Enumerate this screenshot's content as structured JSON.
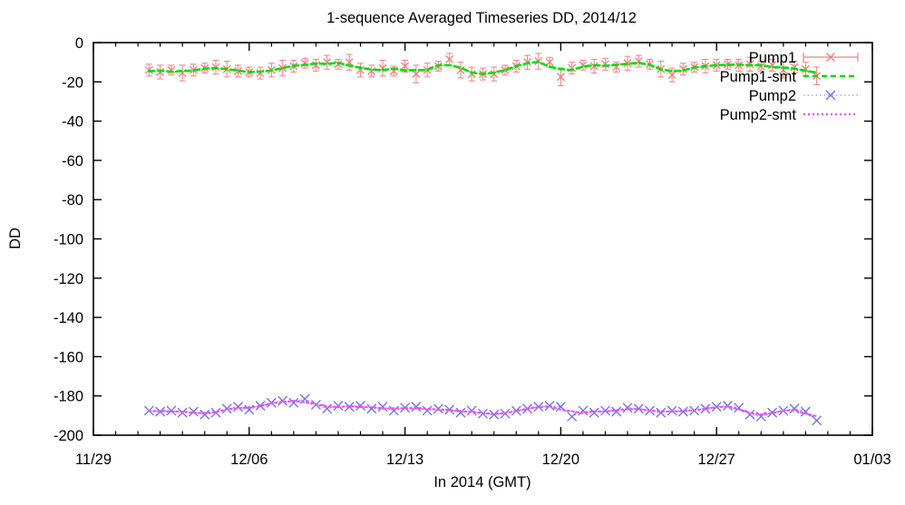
{
  "chart_data": {
    "type": "line",
    "title": "1-sequence Averaged Timeseries DD, 2014/12",
    "xlabel": "In 2014 (GMT)",
    "ylabel": "DD",
    "x_unit": "days since 11/29 2014 00:00 GMT",
    "xlim": [
      0,
      35
    ],
    "ylim": [
      -200,
      0
    ],
    "grid": false,
    "legend_position": "top-right",
    "xticks": [
      {
        "day": 0,
        "label": "11/29"
      },
      {
        "day": 7,
        "label": "12/06"
      },
      {
        "day": 14,
        "label": "12/13"
      },
      {
        "day": 21,
        "label": "12/20"
      },
      {
        "day": 28,
        "label": "12/27"
      },
      {
        "day": 35,
        "label": "01/03"
      }
    ],
    "x_minor_step_days": 1,
    "yticks": [
      0,
      -20,
      -40,
      -60,
      -80,
      -100,
      -120,
      -140,
      -160,
      -180,
      -200
    ],
    "x_days": [
      2.5,
      3,
      3.5,
      4,
      4.5,
      5,
      5.5,
      6,
      6.5,
      7,
      7.5,
      8,
      8.5,
      9,
      9.5,
      10,
      10.5,
      11,
      11.5,
      12,
      12.5,
      13,
      13.5,
      14,
      14.5,
      15,
      15.5,
      16,
      16.5,
      17,
      17.5,
      18,
      18.5,
      19,
      19.5,
      20,
      20.5,
      21,
      21.5,
      22,
      22.5,
      23,
      23.5,
      24,
      24.5,
      25,
      25.5,
      26,
      26.5,
      27,
      27.5,
      28,
      28.5,
      29,
      29.5,
      30,
      30.5,
      31,
      31.5,
      32,
      32.5
    ],
    "series": [
      {
        "name": "Pump1",
        "style": "errorbars",
        "marker": "x",
        "color": "#f08080",
        "values": [
          -14,
          -15,
          -14,
          -15.5,
          -14,
          -13,
          -12.5,
          -13.5,
          -14.5,
          -15,
          -15.5,
          -14,
          -13,
          -12,
          -10.5,
          -11.5,
          -10,
          -11,
          -10,
          -14,
          -14.5,
          -13,
          -14.5,
          -12,
          -16,
          -14,
          -12,
          -8.5,
          -14,
          -16,
          -16,
          -16,
          -14,
          -12,
          -10,
          -9.5,
          -10,
          -17.5,
          -13,
          -11.5,
          -12,
          -11,
          -12.5,
          -10.5,
          -9.5,
          -11,
          -13.5,
          -16.5,
          -13.5,
          -12.5,
          -12,
          -11.5,
          -11,
          -11.5,
          -11,
          -12,
          -11.5,
          -14,
          -12.5,
          -13.5,
          -17
        ],
        "yerr": [
          3,
          3.5,
          2.5,
          4,
          3,
          2.5,
          3.5,
          4,
          3,
          2.5,
          3,
          3.5,
          4,
          3,
          2.5,
          3,
          3.5,
          2.5,
          4,
          3.5,
          3,
          4,
          2.5,
          3,
          4.5,
          3.5,
          2.5,
          3,
          4,
          3.5,
          3,
          3.5,
          2.5,
          3,
          3.5,
          4,
          2.5,
          4.5,
          3,
          2.5,
          3.5,
          3,
          2.5,
          3.5,
          3,
          2.5,
          4,
          3.5,
          3,
          2.5,
          3.5,
          3,
          2.5,
          3,
          3.5,
          2.5,
          3,
          4,
          3,
          3.5,
          4.5
        ]
      },
      {
        "name": "Pump1-smt",
        "style": "dashed-line",
        "color": "#00dc00",
        "values": [
          -14.5,
          -14.3,
          -14.8,
          -14.5,
          -14.2,
          -13.2,
          -13,
          -13.5,
          -14.3,
          -15,
          -14.8,
          -14.2,
          -13,
          -11.8,
          -11.3,
          -10.7,
          -10.8,
          -10.3,
          -11.7,
          -12.8,
          -13.8,
          -14,
          -13.2,
          -14.2,
          -14,
          -14,
          -11.5,
          -11.5,
          -12.8,
          -15.3,
          -16,
          -15.3,
          -14,
          -12,
          -10.5,
          -9.8,
          -12.3,
          -13.5,
          -14,
          -12.2,
          -11.5,
          -11.8,
          -11.3,
          -10.8,
          -10.3,
          -11.3,
          -13.7,
          -14.5,
          -14.2,
          -12.7,
          -12,
          -11.5,
          -11.3,
          -11.2,
          -11.5,
          -11.5,
          -12.5,
          -12.7,
          -13.3,
          -14.3,
          -15.3
        ]
      },
      {
        "name": "Pump2",
        "style": "dotted-linespoints",
        "marker": "x",
        "color": "#9b9bff",
        "marker_color": "#7272f0",
        "values": [
          -187.5,
          -188,
          -187.5,
          -188.5,
          -188,
          -189.5,
          -188.5,
          -186.5,
          -185.5,
          -187,
          -185,
          -183.5,
          -182.5,
          -183.5,
          -181.5,
          -184.5,
          -186.5,
          -185,
          -185.5,
          -185,
          -186.5,
          -185.5,
          -187.5,
          -186,
          -185.5,
          -187.5,
          -186.5,
          -187,
          -188.5,
          -187.5,
          -189,
          -189.5,
          -189,
          -187.5,
          -186.5,
          -185.5,
          -185,
          -185.5,
          -190.5,
          -187.5,
          -188.5,
          -187.5,
          -188,
          -186,
          -186.5,
          -187.5,
          -188.5,
          -187.5,
          -188,
          -187.5,
          -186.5,
          -185.5,
          -185,
          -186,
          -189.5,
          -190.5,
          -188.5,
          -187.5,
          -186.5,
          -188,
          -192.5
        ]
      },
      {
        "name": "Pump2-smt",
        "style": "dotted-line",
        "color": "#f052f0",
        "values": [
          -187.8,
          -187.7,
          -188,
          -188,
          -188.7,
          -188.7,
          -188.2,
          -186.8,
          -186.3,
          -185.8,
          -185.2,
          -183.7,
          -183.2,
          -182.5,
          -183.2,
          -184.2,
          -185.3,
          -185.7,
          -185.2,
          -185.7,
          -185.7,
          -186.5,
          -186.3,
          -186.3,
          -186.3,
          -186.5,
          -187,
          -187.3,
          -187.7,
          -188.3,
          -188.7,
          -189.2,
          -188.7,
          -187.7,
          -186.5,
          -185.7,
          -185.3,
          -187,
          -187.8,
          -188.8,
          -187.8,
          -188,
          -187.2,
          -186.8,
          -186.7,
          -187.5,
          -187.8,
          -188,
          -187.7,
          -187.3,
          -186.5,
          -185.7,
          -185.5,
          -186.8,
          -188.7,
          -189.5,
          -188.8,
          -187.5,
          -187.3,
          -189,
          -190.3
        ]
      }
    ],
    "colors": {
      "frame": "#000000",
      "background": "#ffffff",
      "pump1": "#f08080",
      "pump1_smt": "#00dc00",
      "pump2": "#7272f0",
      "pump2_smt": "#f052f0"
    }
  }
}
